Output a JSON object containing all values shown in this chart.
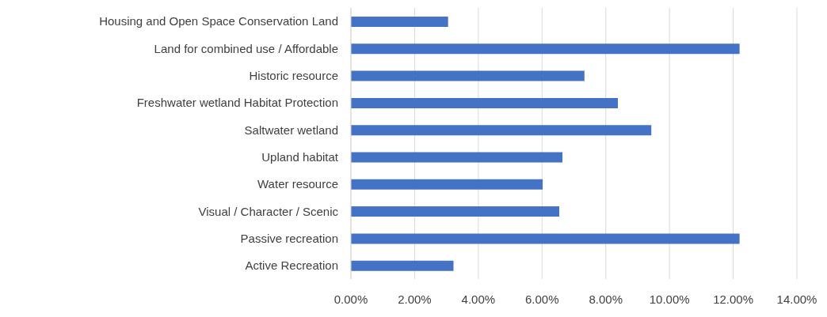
{
  "chart_data": {
    "type": "bar",
    "orientation": "horizontal",
    "categories": [
      "Housing and Open Space Conservation Land",
      "Land for combined use / Affordable",
      "Historic resource",
      "Freshwater wetland Habitat Protection",
      "Saltwater wetland",
      "Upland habitat",
      "Water resource",
      "Visual / Character / Scenic",
      "Passive recreation",
      "Active Recreation"
    ],
    "values": [
      3.05,
      12.2,
      7.33,
      8.38,
      9.43,
      6.64,
      6.02,
      6.54,
      12.2,
      3.22
    ],
    "color": "#4472c4",
    "xlim": [
      0,
      14
    ],
    "xticks": [
      {
        "value": 0,
        "label": "0.00%"
      },
      {
        "value": 2,
        "label": "2.00%"
      },
      {
        "value": 4,
        "label": "4.00%"
      },
      {
        "value": 6,
        "label": "6.00%"
      },
      {
        "value": 8,
        "label": "8.00%"
      },
      {
        "value": 10,
        "label": "10.00%"
      },
      {
        "value": 12,
        "label": "12.00%"
      },
      {
        "value": 14,
        "label": "14.00%"
      }
    ],
    "grid": "x"
  }
}
